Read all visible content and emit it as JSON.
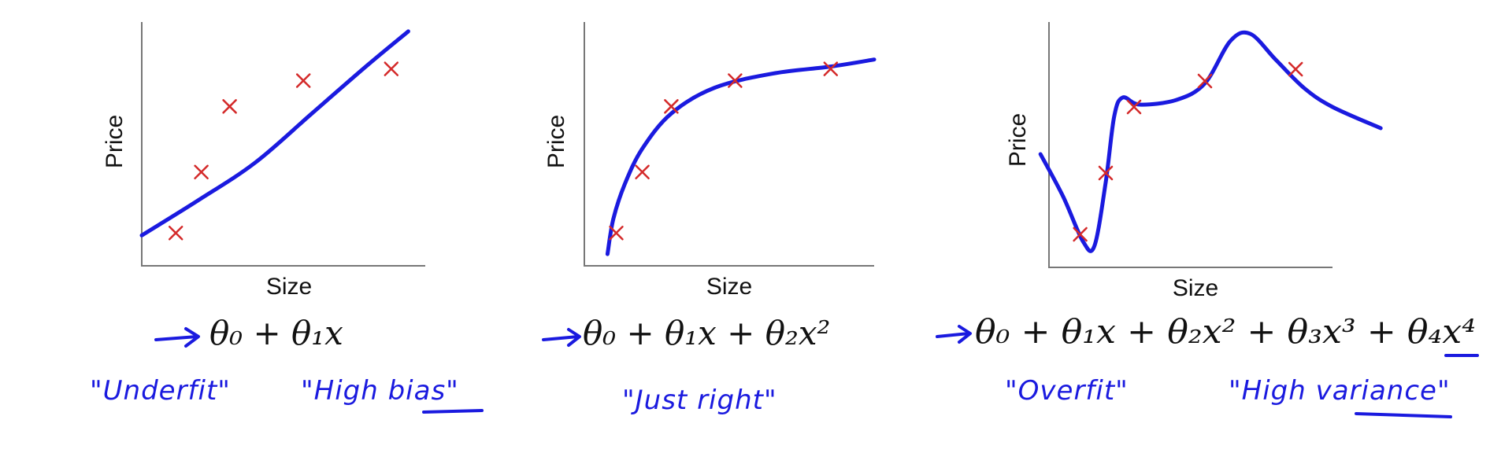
{
  "colors": {
    "fit_line": "#1a1adf",
    "marker": "#d42a2a",
    "axis": "#777777",
    "handwriting": "#1a1adf"
  },
  "chart_data": [
    {
      "type": "scatter",
      "xlabel": "Size",
      "ylabel": "Price",
      "points": [
        {
          "x": 1.2,
          "y": 1.4
        },
        {
          "x": 2.1,
          "y": 4.0
        },
        {
          "x": 3.1,
          "y": 6.8
        },
        {
          "x": 5.7,
          "y": 7.9
        },
        {
          "x": 8.8,
          "y": 8.4
        }
      ],
      "fit_curve": [
        {
          "x": 0,
          "y": 1.3
        },
        {
          "x": 2,
          "y": 2.8
        },
        {
          "x": 4,
          "y": 4.4
        },
        {
          "x": 6,
          "y": 6.5
        },
        {
          "x": 8,
          "y": 8.6
        },
        {
          "x": 9.4,
          "y": 10.0
        }
      ],
      "xlim": [
        0,
        10
      ],
      "ylim": [
        0,
        10.4
      ],
      "formula": "θ₀ + θ₁x",
      "annotations": [
        "\"Underfit\"",
        "\"High bias\""
      ]
    },
    {
      "type": "scatter",
      "xlabel": "Size",
      "ylabel": "Price",
      "points": [
        {
          "x": 1.1,
          "y": 1.4
        },
        {
          "x": 2.0,
          "y": 4.0
        },
        {
          "x": 3.0,
          "y": 6.8
        },
        {
          "x": 5.2,
          "y": 7.9
        },
        {
          "x": 8.5,
          "y": 8.4
        }
      ],
      "fit_curve": [
        {
          "x": 0.8,
          "y": 0.5
        },
        {
          "x": 1.0,
          "y": 2.0
        },
        {
          "x": 1.4,
          "y": 3.5
        },
        {
          "x": 2.0,
          "y": 5.0
        },
        {
          "x": 3.0,
          "y": 6.5
        },
        {
          "x": 4.5,
          "y": 7.6
        },
        {
          "x": 6.5,
          "y": 8.2
        },
        {
          "x": 8.5,
          "y": 8.5
        },
        {
          "x": 10.0,
          "y": 8.8
        }
      ],
      "xlim": [
        0,
        10
      ],
      "ylim": [
        0,
        10.4
      ],
      "formula": "θ₀ + θ₁x + θ₂x²",
      "annotations": [
        "\"Just right\"",
        "",
        "\"Just right\""
      ]
    },
    {
      "type": "scatter",
      "xlabel": "Size",
      "ylabel": "Price",
      "points": [
        {
          "x": 1.1,
          "y": 1.4
        },
        {
          "x": 2.0,
          "y": 4.0
        },
        {
          "x": 3.0,
          "y": 6.8
        },
        {
          "x": 5.5,
          "y": 7.9
        },
        {
          "x": 8.7,
          "y": 8.4
        }
      ],
      "fit_curve": [
        {
          "x": -0.3,
          "y": 4.8
        },
        {
          "x": 0.5,
          "y": 3.0
        },
        {
          "x": 1.2,
          "y": 1.1
        },
        {
          "x": 1.6,
          "y": 0.9
        },
        {
          "x": 2.0,
          "y": 3.6
        },
        {
          "x": 2.3,
          "y": 6.4
        },
        {
          "x": 2.6,
          "y": 7.2
        },
        {
          "x": 3.2,
          "y": 6.9
        },
        {
          "x": 4.5,
          "y": 7.1
        },
        {
          "x": 5.5,
          "y": 7.8
        },
        {
          "x": 6.4,
          "y": 9.6
        },
        {
          "x": 7.1,
          "y": 9.9
        },
        {
          "x": 8.0,
          "y": 8.8
        },
        {
          "x": 9.0,
          "y": 7.6
        },
        {
          "x": 10.0,
          "y": 6.8
        },
        {
          "x": 11.7,
          "y": 5.9
        }
      ],
      "xlim": [
        0,
        10
      ],
      "ylim": [
        0,
        10.4
      ],
      "formula": "θ₀ + θ₁x + θ₂x² + θ₃x³ + θ₄x⁴",
      "annotations": [
        "\"Overfit\"",
        "\"High variance\""
      ]
    }
  ]
}
